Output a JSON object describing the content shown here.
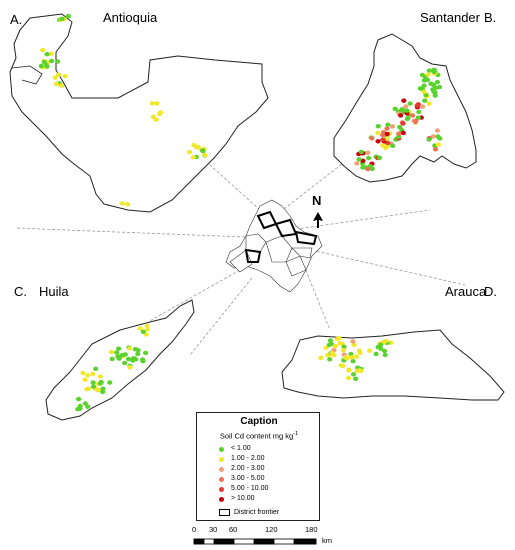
{
  "panels": {
    "a": {
      "letter": "A.",
      "name": "Antioquia"
    },
    "b": {
      "letter": "B.",
      "name": "Santander"
    },
    "c": {
      "letter": "C.",
      "name": "Huila"
    },
    "d": {
      "letter": "D.",
      "name": "Arauca"
    }
  },
  "north": {
    "label": "N"
  },
  "legend": {
    "title": "Caption",
    "subtitle": "Soil Cd content mg kg",
    "subtitle_sup": "-1",
    "classes": [
      {
        "label": "< 1.00",
        "color": "#5ad22d"
      },
      {
        "label": "1.00 - 2.00",
        "color": "#f2e82a"
      },
      {
        "label": "2.00 - 3.00",
        "color": "#f3a07a"
      },
      {
        "label": "3.00 - 5.00",
        "color": "#ee7056"
      },
      {
        "label": "5.00 - 10.00",
        "color": "#e23a2c"
      },
      {
        "label": "> 10.00",
        "color": "#c8000e"
      }
    ],
    "frontier_label": "District frontier"
  },
  "scale": {
    "ticks": [
      "0",
      "30",
      "60",
      "120",
      "180"
    ],
    "unit": "km"
  }
}
